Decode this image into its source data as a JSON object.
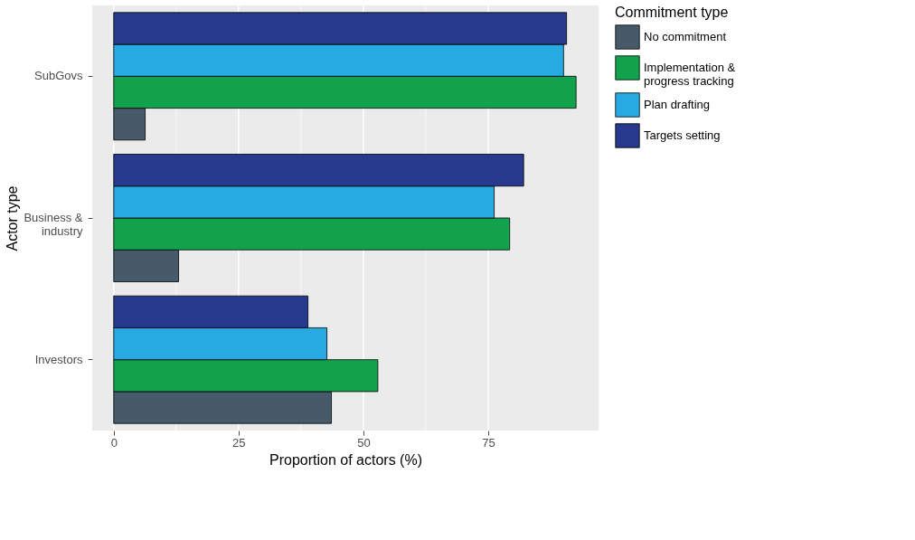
{
  "chart_data": {
    "type": "bar",
    "orientation": "horizontal",
    "xlabel": "Proportion of actors (%)",
    "ylabel": "Actor type",
    "legend_title": "Commitment type",
    "legend": "right",
    "categories": [
      "SubGovs",
      "Business &\nindustry",
      "Investors"
    ],
    "series": [
      {
        "name": "No commitment",
        "color": "#465a6a",
        "values": [
          6.3,
          13.0,
          43.6
        ]
      },
      {
        "name": "Implementation &\nprogress tracking",
        "color": "#12a24b",
        "values": [
          92.6,
          79.3,
          52.9
        ]
      },
      {
        "name": "Plan drafting",
        "color": "#27a9e1",
        "values": [
          90.1,
          76.2,
          42.7
        ]
      },
      {
        "name": "Targets setting",
        "color": "#283a8e",
        "values": [
          90.7,
          82.1,
          38.9
        ]
      }
    ],
    "xlim": [
      -4.3,
      97.1
    ],
    "xticks": [
      0,
      25,
      50,
      75
    ],
    "grid": "x"
  }
}
